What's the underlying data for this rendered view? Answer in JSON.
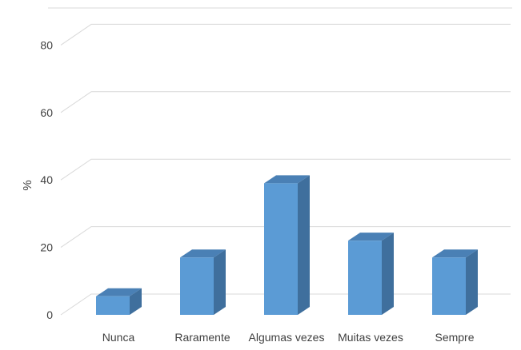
{
  "chart_data": {
    "type": "bar",
    "style": "3d-column",
    "categories": [
      "Nunca",
      "Raramente",
      "Algumas vezes",
      "Muitas vezes",
      "Sempre"
    ],
    "values": [
      5.5,
      17,
      39,
      22,
      17
    ],
    "title": "",
    "xlabel": "",
    "ylabel": "%",
    "ylim": [
      0,
      85
    ],
    "yticks": [
      0,
      20,
      40,
      60,
      80
    ],
    "grid": true,
    "legend": "none",
    "colors": {
      "front": "#5B9BD5",
      "side": "#3F6F9D",
      "top": "#4A80B5",
      "grid": "#D9D9D9",
      "text": "#404040"
    }
  }
}
